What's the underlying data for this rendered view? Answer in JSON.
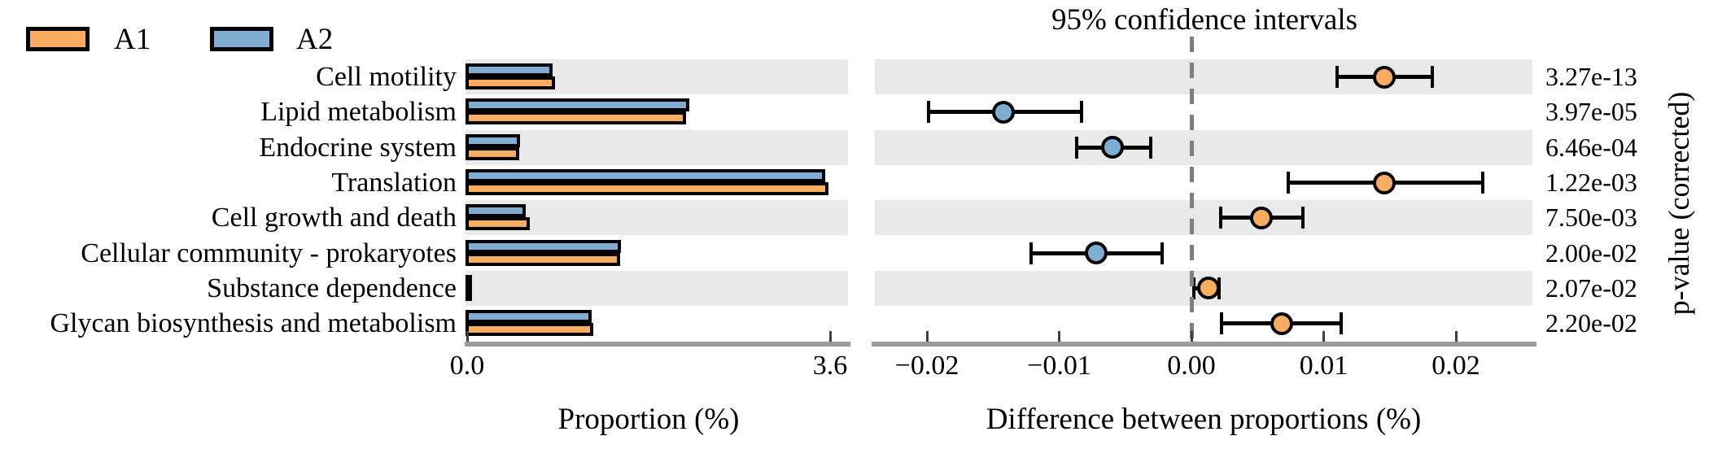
{
  "legend": {
    "items": [
      {
        "label": "A1",
        "color": "#FAAD61"
      },
      {
        "label": "A2",
        "color": "#7FACD1"
      }
    ]
  },
  "colors": {
    "a1_orange": "#FAAD61",
    "a2_blue": "#7FACD1",
    "row_band": "#E9E9E9",
    "axis_line": "#9C9C9C",
    "zero_dash": "#7F7F7F",
    "marker_outline": "#000000"
  },
  "right_axis_label": "p-value (corrected)",
  "chart_data": [
    {
      "type": "bar",
      "orientation": "horizontal",
      "title": "",
      "xlabel": "Proportion (%)",
      "xlim": [
        0,
        3.77
      ],
      "xticks": [
        {
          "label": "0.0",
          "value": 0.0
        },
        {
          "label": "3.6",
          "value": 3.6
        }
      ],
      "grid": false,
      "categories": [
        "Cell motility",
        "Lipid metabolism",
        "Endocrine system",
        "Translation",
        "Cell growth and death",
        "Cellular community - prokaryotes",
        "Substance dependence",
        "Glycan biosynthesis and metabolism"
      ],
      "series": [
        {
          "name": "A1",
          "color": "#FAAD61",
          "values": [
            0.89,
            2.19,
            0.53,
            3.6,
            0.64,
            1.53,
            0.05,
            1.27
          ]
        },
        {
          "name": "A2",
          "color": "#7FACD1",
          "values": [
            0.86,
            2.22,
            0.54,
            3.57,
            0.6,
            1.54,
            0.05,
            1.25
          ]
        }
      ]
    },
    {
      "type": "scatter",
      "subtype": "confidence-intervals",
      "title": "95% confidence intervals",
      "xlabel": "Difference between proportions (%)",
      "right_axis_label": "p-value (corrected)",
      "xlim": [
        -0.024,
        0.026
      ],
      "xticks": [
        {
          "label": "−0.02",
          "value": -0.02
        },
        {
          "label": "−0.01",
          "value": -0.01
        },
        {
          "label": "0.00",
          "value": 0.0
        },
        {
          "label": "0.01",
          "value": 0.01
        },
        {
          "label": "0.02",
          "value": 0.02
        }
      ],
      "zero_line": 0.0,
      "legend_position": "top-left-of-figure",
      "categories": [
        "Cell motility",
        "Lipid metabolism",
        "Endocrine system",
        "Translation",
        "Cell growth and death",
        "Cellular community - prokaryotes",
        "Substance dependence",
        "Glycan biosynthesis and metabolism"
      ],
      "points": [
        {
          "category": "Cell motility",
          "mean": 0.0146,
          "ci": [
            0.011,
            0.0182
          ],
          "group": "A1",
          "p_value": "3.27e-13"
        },
        {
          "category": "Lipid metabolism",
          "mean": -0.0142,
          "ci": [
            -0.0199,
            -0.0083
          ],
          "group": "A2",
          "p_value": "3.97e-05"
        },
        {
          "category": "Endocrine system",
          "mean": -0.006,
          "ci": [
            -0.0087,
            -0.0031
          ],
          "group": "A2",
          "p_value": "6.46e-04"
        },
        {
          "category": "Translation",
          "mean": 0.0146,
          "ci": [
            0.0073,
            0.022
          ],
          "group": "A1",
          "p_value": "1.22e-03"
        },
        {
          "category": "Cell growth and death",
          "mean": 0.0053,
          "ci": [
            0.0022,
            0.0084
          ],
          "group": "A1",
          "p_value": "7.50e-03"
        },
        {
          "category": "Cellular community - prokaryotes",
          "mean": -0.0072,
          "ci": [
            -0.0121,
            -0.0022
          ],
          "group": "A2",
          "p_value": "2.00e-02"
        },
        {
          "category": "Substance dependence",
          "mean": 0.0013,
          "ci": [
            0.0002,
            0.0021
          ],
          "group": "A1",
          "p_value": "2.07e-02"
        },
        {
          "category": "Glycan biosynthesis and metabolism",
          "mean": 0.0068,
          "ci": [
            0.0023,
            0.0113
          ],
          "group": "A1",
          "p_value": "2.20e-02"
        }
      ]
    }
  ]
}
